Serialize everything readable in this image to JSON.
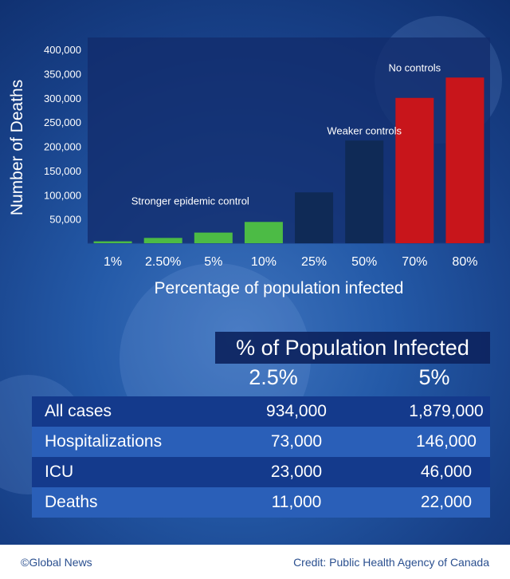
{
  "chart_data": {
    "type": "bar",
    "xlabel": "Percentage of population infected",
    "ylabel": "Number of Deaths",
    "ylim": [
      0,
      400000
    ],
    "yticks": [
      "400,000",
      "350,000",
      "300,000",
      "250,000",
      "200,000",
      "150,000",
      "100,000",
      "50,000"
    ],
    "ytick_values": [
      400000,
      350000,
      300000,
      250000,
      200000,
      150000,
      100000,
      50000
    ],
    "categories": [
      "1%",
      "2.50%",
      "5%",
      "10%",
      "25%",
      "50%",
      "70%",
      "80%"
    ],
    "values": [
      4000,
      11000,
      22000,
      44000,
      105000,
      212000,
      300000,
      342000
    ],
    "bar_colors": [
      "#4cbb45",
      "#4cbb45",
      "#4cbb45",
      "#4cbb45",
      "#0f2a56",
      "#0f2a56",
      "#c8151b",
      "#c8151b"
    ],
    "annotations": [
      {
        "text": "Stronger epidemic control",
        "anchor_category": "2.50%",
        "anchor_value": 80000
      },
      {
        "text": "Weaker controls",
        "anchor_category": "50%",
        "anchor_value": 225000
      },
      {
        "text": "No controls",
        "anchor_category": "70%",
        "anchor_value": 355000
      }
    ],
    "grid": false
  },
  "table": {
    "header": "% of Population Infected",
    "columns": [
      "2.5%",
      "5%"
    ],
    "rows": [
      {
        "label": "All cases",
        "v1": "934,000",
        "v2": "1,879,000"
      },
      {
        "label": "Hospitalizations",
        "v1": "73,000",
        "v2": "146,000"
      },
      {
        "label": "ICU",
        "v1": "23,000",
        "v2": "46,000"
      },
      {
        "label": "Deaths",
        "v1": "11,000",
        "v2": "22,000"
      }
    ],
    "row_colors": [
      "#143a8c",
      "#2a5fb8",
      "#143a8c",
      "#2a5fb8"
    ]
  },
  "footer": {
    "left": "©Global News",
    "right": "Credit: Public Health Agency of Canada"
  }
}
